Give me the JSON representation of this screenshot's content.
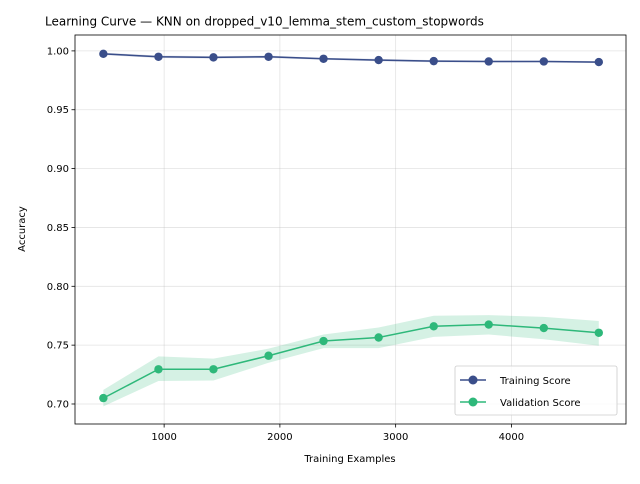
{
  "chart_data": {
    "type": "line",
    "title": "Learning Curve — KNN on dropped_v10_lemma_stem_custom_stopwords",
    "xlabel": "Training Examples",
    "ylabel": "Accuracy",
    "xlim": [
      230,
      4990
    ],
    "ylim": [
      0.683,
      1.0135
    ],
    "xticks": [
      1000,
      2000,
      3000,
      4000
    ],
    "xtick_labels": [
      "1000",
      "2000",
      "3000",
      "4000"
    ],
    "yticks": [
      0.7,
      0.75,
      0.8,
      0.85,
      0.9,
      0.95,
      1.0
    ],
    "ytick_labels": [
      "0.70",
      "0.75",
      "0.80",
      "0.85",
      "0.90",
      "0.95",
      "1.00"
    ],
    "grid": true,
    "legend_position": "lower-right",
    "x": [
      475,
      951,
      1426,
      1902,
      2377,
      2853,
      3329,
      3804,
      4280,
      4755
    ],
    "series": [
      {
        "name": "Training Score",
        "color": "#3a4e8a",
        "values": [
          0.9975,
          0.995,
          0.9945,
          0.995,
          0.9933,
          0.9922,
          0.9913,
          0.991,
          0.991,
          0.9905
        ],
        "band_lower": [
          0.9965,
          0.994,
          0.9935,
          0.994,
          0.9925,
          0.9912,
          0.9904,
          0.9902,
          0.9902,
          0.9897
        ],
        "band_upper": [
          0.9985,
          0.996,
          0.9955,
          0.996,
          0.9941,
          0.9932,
          0.9922,
          0.9918,
          0.9918,
          0.9913
        ]
      },
      {
        "name": "Validation Score",
        "color": "#2eb87a",
        "values": [
          0.705,
          0.7295,
          0.7295,
          0.741,
          0.7535,
          0.7565,
          0.766,
          0.7675,
          0.7645,
          0.7605
        ],
        "band_lower": [
          0.698,
          0.7195,
          0.72,
          0.735,
          0.7475,
          0.7475,
          0.757,
          0.759,
          0.755,
          0.7495
        ],
        "band_upper": [
          0.712,
          0.7405,
          0.7385,
          0.747,
          0.759,
          0.765,
          0.775,
          0.7755,
          0.774,
          0.7705
        ]
      }
    ]
  }
}
